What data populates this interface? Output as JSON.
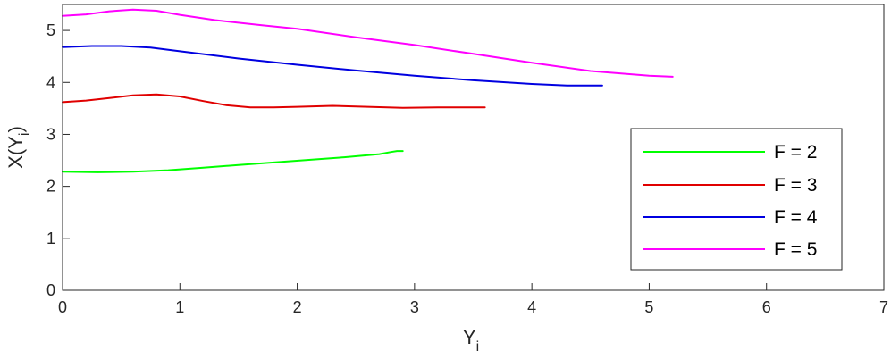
{
  "chart_data": {
    "type": "line",
    "xlabel": {
      "main": "Y",
      "sub": "i"
    },
    "ylabel": {
      "main": "X(Y",
      "sub": "i",
      "close": ")"
    },
    "xlim": [
      0,
      7
    ],
    "ylim": [
      0,
      5.5
    ],
    "xticks": [
      0,
      1,
      2,
      3,
      4,
      5,
      6,
      7
    ],
    "yticks": [
      0,
      1,
      2,
      3,
      4,
      5
    ],
    "xtick_labels": [
      "0",
      "1",
      "2",
      "3",
      "4",
      "5",
      "6",
      "7"
    ],
    "ytick_labels": [
      "0",
      "1",
      "2",
      "3",
      "4",
      "5"
    ],
    "grid": false,
    "legend_position": "bottom-right",
    "series": [
      {
        "name": "F = 2",
        "color": "#00ff00",
        "x": [
          0,
          0.3,
          0.6,
          0.9,
          1.2,
          1.5,
          1.8,
          2.1,
          2.4,
          2.7,
          2.8,
          2.85,
          2.9
        ],
        "y": [
          2.28,
          2.27,
          2.28,
          2.31,
          2.36,
          2.41,
          2.46,
          2.51,
          2.56,
          2.62,
          2.66,
          2.68,
          2.68
        ]
      },
      {
        "name": "F = 3",
        "color": "#e00000",
        "x": [
          0,
          0.2,
          0.4,
          0.6,
          0.8,
          1.0,
          1.2,
          1.4,
          1.6,
          1.8,
          2.0,
          2.3,
          2.6,
          2.9,
          3.2,
          3.6
        ],
        "y": [
          3.62,
          3.65,
          3.7,
          3.75,
          3.77,
          3.73,
          3.64,
          3.56,
          3.52,
          3.52,
          3.53,
          3.55,
          3.53,
          3.51,
          3.52,
          3.52
        ]
      },
      {
        "name": "F = 4",
        "color": "#0000e0",
        "x": [
          0,
          0.25,
          0.5,
          0.75,
          1.0,
          1.5,
          2.0,
          2.5,
          3.0,
          3.5,
          4.0,
          4.3,
          4.6
        ],
        "y": [
          4.68,
          4.7,
          4.7,
          4.67,
          4.6,
          4.46,
          4.34,
          4.23,
          4.13,
          4.04,
          3.97,
          3.94,
          3.94
        ]
      },
      {
        "name": "F = 5",
        "color": "#ff00ff",
        "x": [
          0,
          0.2,
          0.4,
          0.6,
          0.8,
          1.0,
          1.3,
          1.7,
          2.0,
          2.5,
          3.0,
          3.5,
          4.0,
          4.5,
          5.0,
          5.2
        ],
        "y": [
          5.28,
          5.31,
          5.37,
          5.4,
          5.38,
          5.3,
          5.2,
          5.1,
          5.03,
          4.87,
          4.72,
          4.55,
          4.38,
          4.22,
          4.13,
          4.11
        ]
      }
    ]
  }
}
